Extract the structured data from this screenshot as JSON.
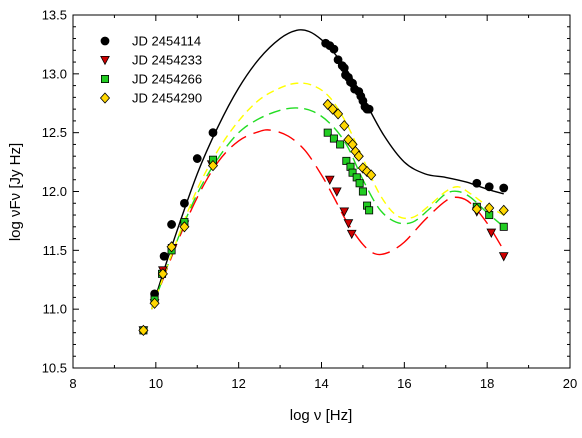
{
  "chart_data": {
    "type": "scatter",
    "title": "",
    "xlabel": "log ν  [Hz]",
    "ylabel": "log νFν [Jy Hz]",
    "xlim": [
      8,
      20
    ],
    "ylim": [
      10.5,
      13.5
    ],
    "xticks": [
      "8",
      "10",
      "12",
      "14",
      "16",
      "18",
      "20"
    ],
    "yticks": [
      "10.5",
      "11.0",
      "11.5",
      "12.0",
      "12.5",
      "13.0",
      "13.5"
    ],
    "legend_position": "top-left",
    "series": [
      {
        "name": "JD 2454114",
        "marker": "circle",
        "color": "#000000",
        "points": [
          [
            9.7,
            10.82
          ],
          [
            9.97,
            11.13
          ],
          [
            10.2,
            11.45
          ],
          [
            10.38,
            11.72
          ],
          [
            10.69,
            11.9
          ],
          [
            11.0,
            12.28
          ],
          [
            11.38,
            12.5
          ],
          [
            14.1,
            13.26
          ],
          [
            14.2,
            13.24
          ],
          [
            14.3,
            13.21
          ],
          [
            14.4,
            13.12
          ],
          [
            14.5,
            13.07
          ],
          [
            14.55,
            13.05
          ],
          [
            14.58,
            12.99
          ],
          [
            14.65,
            12.97
          ],
          [
            14.7,
            12.93
          ],
          [
            14.75,
            12.92
          ],
          [
            14.8,
            12.87
          ],
          [
            14.9,
            12.85
          ],
          [
            14.95,
            12.81
          ],
          [
            15.0,
            12.77
          ],
          [
            15.05,
            12.72
          ],
          [
            15.1,
            12.7
          ],
          [
            15.15,
            12.7
          ],
          [
            17.75,
            12.07
          ],
          [
            18.05,
            12.04
          ],
          [
            18.4,
            12.03
          ]
        ]
      },
      {
        "name": "JD 2454233",
        "marker": "triangle-down",
        "color": "#cc0000",
        "points": [
          [
            9.7,
            10.82
          ],
          [
            9.97,
            11.05
          ],
          [
            10.17,
            11.33
          ],
          [
            10.4,
            11.52
          ],
          [
            10.69,
            11.72
          ],
          [
            11.35,
            12.23
          ],
          [
            14.2,
            12.1
          ],
          [
            14.37,
            12.0
          ],
          [
            14.55,
            11.83
          ],
          [
            14.65,
            11.73
          ],
          [
            14.73,
            11.64
          ],
          [
            17.75,
            11.83
          ],
          [
            18.1,
            11.65
          ],
          [
            18.4,
            11.45
          ]
        ]
      },
      {
        "name": "JD 2454266",
        "marker": "square",
        "color": "#22cc22",
        "points": [
          [
            9.7,
            10.82
          ],
          [
            9.97,
            11.08
          ],
          [
            10.15,
            11.3
          ],
          [
            10.38,
            11.5
          ],
          [
            10.69,
            11.74
          ],
          [
            11.38,
            12.27
          ],
          [
            14.15,
            12.5
          ],
          [
            14.3,
            12.45
          ],
          [
            14.45,
            12.4
          ],
          [
            14.6,
            12.26
          ],
          [
            14.7,
            12.21
          ],
          [
            14.75,
            12.16
          ],
          [
            14.85,
            12.12
          ],
          [
            14.92,
            12.07
          ],
          [
            15.0,
            12.0
          ],
          [
            15.1,
            11.88
          ],
          [
            15.15,
            11.84
          ],
          [
            17.75,
            11.87
          ],
          [
            18.05,
            11.8
          ],
          [
            18.4,
            11.7
          ]
        ]
      },
      {
        "name": "JD 2454290",
        "marker": "diamond",
        "color": "#ffd700",
        "points": [
          [
            9.7,
            10.82
          ],
          [
            9.97,
            11.05
          ],
          [
            10.17,
            11.3
          ],
          [
            10.38,
            11.53
          ],
          [
            10.69,
            11.7
          ],
          [
            11.38,
            12.22
          ],
          [
            14.15,
            12.74
          ],
          [
            14.27,
            12.7
          ],
          [
            14.4,
            12.66
          ],
          [
            14.55,
            12.56
          ],
          [
            14.65,
            12.44
          ],
          [
            14.75,
            12.4
          ],
          [
            14.82,
            12.34
          ],
          [
            14.9,
            12.3
          ],
          [
            15.0,
            12.2
          ],
          [
            15.1,
            12.17
          ],
          [
            15.2,
            12.14
          ],
          [
            17.75,
            11.85
          ],
          [
            18.05,
            11.86
          ],
          [
            18.4,
            11.84
          ]
        ]
      }
    ],
    "model_curves": [
      {
        "name": "JD 2454114",
        "color": "#000000",
        "dash": "solid",
        "points": [
          [
            9.9,
            11.0
          ],
          [
            10.4,
            11.55
          ],
          [
            11.0,
            12.15
          ],
          [
            11.5,
            12.55
          ],
          [
            12.0,
            12.88
          ],
          [
            12.5,
            13.13
          ],
          [
            13.0,
            13.3
          ],
          [
            13.4,
            13.37
          ],
          [
            13.7,
            13.36
          ],
          [
            14.0,
            13.29
          ],
          [
            14.3,
            13.18
          ],
          [
            14.6,
            13.04
          ],
          [
            15.0,
            12.8
          ],
          [
            15.5,
            12.48
          ],
          [
            16.0,
            12.25
          ],
          [
            16.5,
            12.15
          ],
          [
            17.0,
            12.12
          ],
          [
            17.5,
            12.08
          ],
          [
            18.0,
            12.02
          ],
          [
            18.4,
            11.98
          ]
        ]
      },
      {
        "name": "JD 2454233",
        "color": "#ff0000",
        "dash": "long",
        "points": [
          [
            9.9,
            11.0
          ],
          [
            10.5,
            11.55
          ],
          [
            11.0,
            11.95
          ],
          [
            11.5,
            12.25
          ],
          [
            12.0,
            12.43
          ],
          [
            12.5,
            12.51
          ],
          [
            12.8,
            12.52
          ],
          [
            13.2,
            12.47
          ],
          [
            13.6,
            12.35
          ],
          [
            14.0,
            12.14
          ],
          [
            14.3,
            11.95
          ],
          [
            14.6,
            11.75
          ],
          [
            15.0,
            11.55
          ],
          [
            15.3,
            11.47
          ],
          [
            15.6,
            11.48
          ],
          [
            16.0,
            11.57
          ],
          [
            16.5,
            11.76
          ],
          [
            17.0,
            11.92
          ],
          [
            17.3,
            11.95
          ],
          [
            17.6,
            11.9
          ],
          [
            18.0,
            11.73
          ],
          [
            18.4,
            11.5
          ]
        ]
      },
      {
        "name": "JD 2454266",
        "color": "#22dd22",
        "dash": "medium",
        "points": [
          [
            9.9,
            11.0
          ],
          [
            10.5,
            11.57
          ],
          [
            11.0,
            11.98
          ],
          [
            11.5,
            12.28
          ],
          [
            12.0,
            12.5
          ],
          [
            12.5,
            12.62
          ],
          [
            13.0,
            12.69
          ],
          [
            13.4,
            12.71
          ],
          [
            13.8,
            12.68
          ],
          [
            14.2,
            12.58
          ],
          [
            14.6,
            12.4
          ],
          [
            15.0,
            12.1
          ],
          [
            15.4,
            11.85
          ],
          [
            15.8,
            11.74
          ],
          [
            16.2,
            11.74
          ],
          [
            16.6,
            11.85
          ],
          [
            17.0,
            11.98
          ],
          [
            17.3,
            12.0
          ],
          [
            17.6,
            11.95
          ],
          [
            18.0,
            11.82
          ],
          [
            18.4,
            11.7
          ]
        ]
      },
      {
        "name": "JD 2454290",
        "color": "#ffff00",
        "dash": "short",
        "points": [
          [
            9.9,
            11.0
          ],
          [
            10.5,
            11.58
          ],
          [
            11.0,
            12.02
          ],
          [
            11.5,
            12.35
          ],
          [
            12.0,
            12.6
          ],
          [
            12.5,
            12.78
          ],
          [
            13.0,
            12.88
          ],
          [
            13.4,
            12.92
          ],
          [
            13.8,
            12.9
          ],
          [
            14.2,
            12.8
          ],
          [
            14.6,
            12.58
          ],
          [
            15.0,
            12.28
          ],
          [
            15.4,
            11.98
          ],
          [
            15.8,
            11.8
          ],
          [
            16.2,
            11.78
          ],
          [
            16.6,
            11.88
          ],
          [
            17.0,
            12.0
          ],
          [
            17.3,
            12.04
          ],
          [
            17.6,
            11.98
          ],
          [
            18.0,
            11.88
          ],
          [
            18.4,
            11.8
          ]
        ]
      }
    ]
  }
}
